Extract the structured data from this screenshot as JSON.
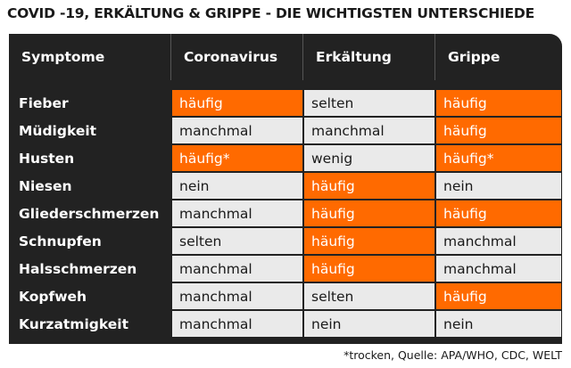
{
  "title": "COVID -19, ERKÄLTUNG & GRIPPE -  DIE WICHTIGSTEN UNTERSCHIEDE",
  "header": {
    "symptom": "Symptome",
    "corona": "Coronavirus",
    "cold": "Erkältung",
    "flu": "Grippe"
  },
  "colors": {
    "highlight": "#ff6a00",
    "dark": "#222222",
    "cell": "#eaeaea"
  },
  "rows": [
    {
      "symptom": "Fieber",
      "corona": "häufig",
      "cold": "selten",
      "flu": "häufig"
    },
    {
      "symptom": "Müdigkeit",
      "corona": "manchmal",
      "cold": "manchmal",
      "flu": "häufig"
    },
    {
      "symptom": "Husten",
      "corona": "häufig*",
      "cold": "wenig",
      "flu": "häufig*"
    },
    {
      "symptom": "Niesen",
      "corona": "nein",
      "cold": "häufig",
      "flu": "nein"
    },
    {
      "symptom": "Gliederschmerzen",
      "corona": "manchmal",
      "cold": "häufig",
      "flu": "häufig"
    },
    {
      "symptom": "Schnupfen",
      "corona": "selten",
      "cold": "häufig",
      "flu": "manchmal"
    },
    {
      "symptom": "Halsschmerzen",
      "corona": "manchmal",
      "cold": "häufig",
      "flu": "manchmal"
    },
    {
      "symptom": "Kopfweh",
      "corona": "manchmal",
      "cold": "selten",
      "flu": "häufig"
    },
    {
      "symptom": "Kurzatmigkeit",
      "corona": "manchmal",
      "cold": "nein",
      "flu": "nein"
    }
  ],
  "footnote": "*trocken, Quelle: APA/WHO, CDC, WELT"
}
